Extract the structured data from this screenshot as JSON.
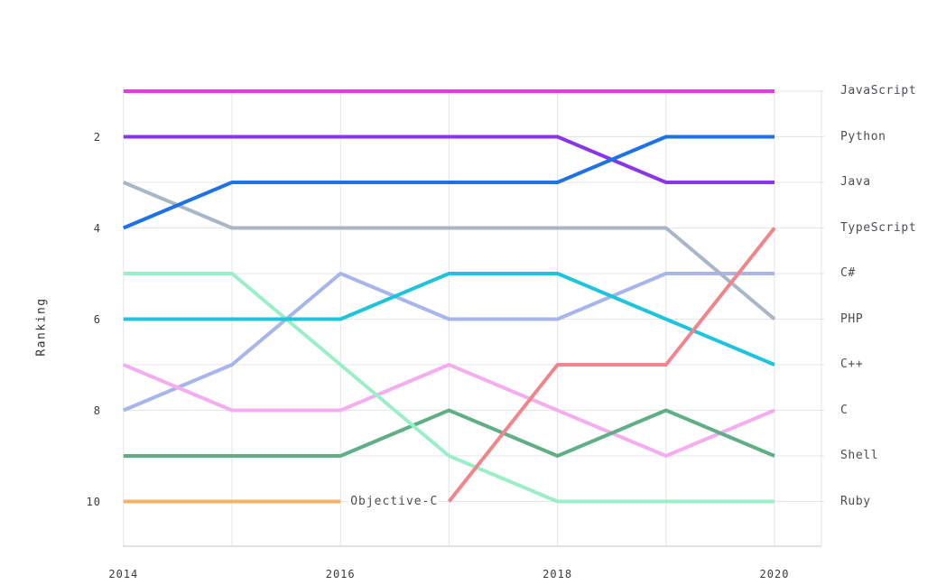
{
  "page": {
    "background": "#ffffff"
  },
  "colors": {
    "grid": "#e4e4e4",
    "axis_line": "#c6c6c6",
    "tick_text": "#3a3a3a",
    "legend_text": "#4c4c52"
  },
  "chart_data": {
    "type": "line",
    "subtype": "bump-ranking",
    "title": "",
    "xlabel": "",
    "ylabel": "Ranking",
    "y_axis_inverted": true,
    "rank_range": [
      1,
      10
    ],
    "grid": true,
    "legend_position": "right",
    "x": [
      2014,
      2015,
      2016,
      2017,
      2018,
      2019,
      2020
    ],
    "x_tick_years": [
      2014,
      2016,
      2018,
      2020
    ],
    "x_tick_labels": [
      "2014",
      "2016",
      "2018",
      "2020"
    ],
    "y_tick_ranks": [
      2,
      4,
      6,
      8,
      10
    ],
    "y_tick_labels": [
      "2",
      "4",
      "6",
      "8",
      "10"
    ],
    "series": [
      {
        "name": "C#",
        "color": "#a6b5ec",
        "values": [
          8,
          7,
          5,
          6,
          6,
          5,
          5
        ]
      },
      {
        "name": "C",
        "color": "#f4aef0",
        "values": [
          7,
          8,
          8,
          7,
          8,
          9,
          8
        ]
      },
      {
        "name": "Shell",
        "color": "#5fae85",
        "values": [
          9,
          9,
          9,
          8,
          9,
          8,
          9
        ]
      },
      {
        "name": "PHP",
        "color": "#a9b6c8",
        "values": [
          3,
          4,
          4,
          4,
          4,
          4,
          6
        ]
      },
      {
        "name": "Ruby",
        "color": "#9aefc8",
        "values": [
          5,
          5,
          7,
          9,
          10,
          10,
          10
        ]
      },
      {
        "name": "Objective-C",
        "color": "#f5b166",
        "values": [
          10,
          10,
          10,
          null,
          null,
          null,
          null
        ]
      },
      {
        "name": "C++",
        "color": "#1ec3dd",
        "values": [
          6,
          6,
          6,
          5,
          5,
          6,
          7
        ]
      },
      {
        "name": "TypeScript",
        "color": "#f0868b",
        "values": [
          null,
          null,
          null,
          10,
          7,
          7,
          4
        ]
      },
      {
        "name": "Java",
        "color": "#8b35e8",
        "values": [
          2,
          2,
          2,
          2,
          2,
          3,
          3
        ]
      },
      {
        "name": "Python",
        "color": "#1d72e8",
        "values": [
          4,
          3,
          3,
          3,
          3,
          2,
          2
        ]
      },
      {
        "name": "JavaScript",
        "color": "#e53ae2",
        "values": [
          1,
          1,
          1,
          1,
          1,
          1,
          1
        ]
      }
    ],
    "legend_labels_top_to_bottom": [
      "JavaScript",
      "Python",
      "Java",
      "TypeScript",
      "C#",
      "PHP",
      "C++",
      "C",
      "Shell",
      "Ruby"
    ],
    "annotations": [
      {
        "text": "Objective-C",
        "year": 2016,
        "rank": 10
      }
    ]
  }
}
